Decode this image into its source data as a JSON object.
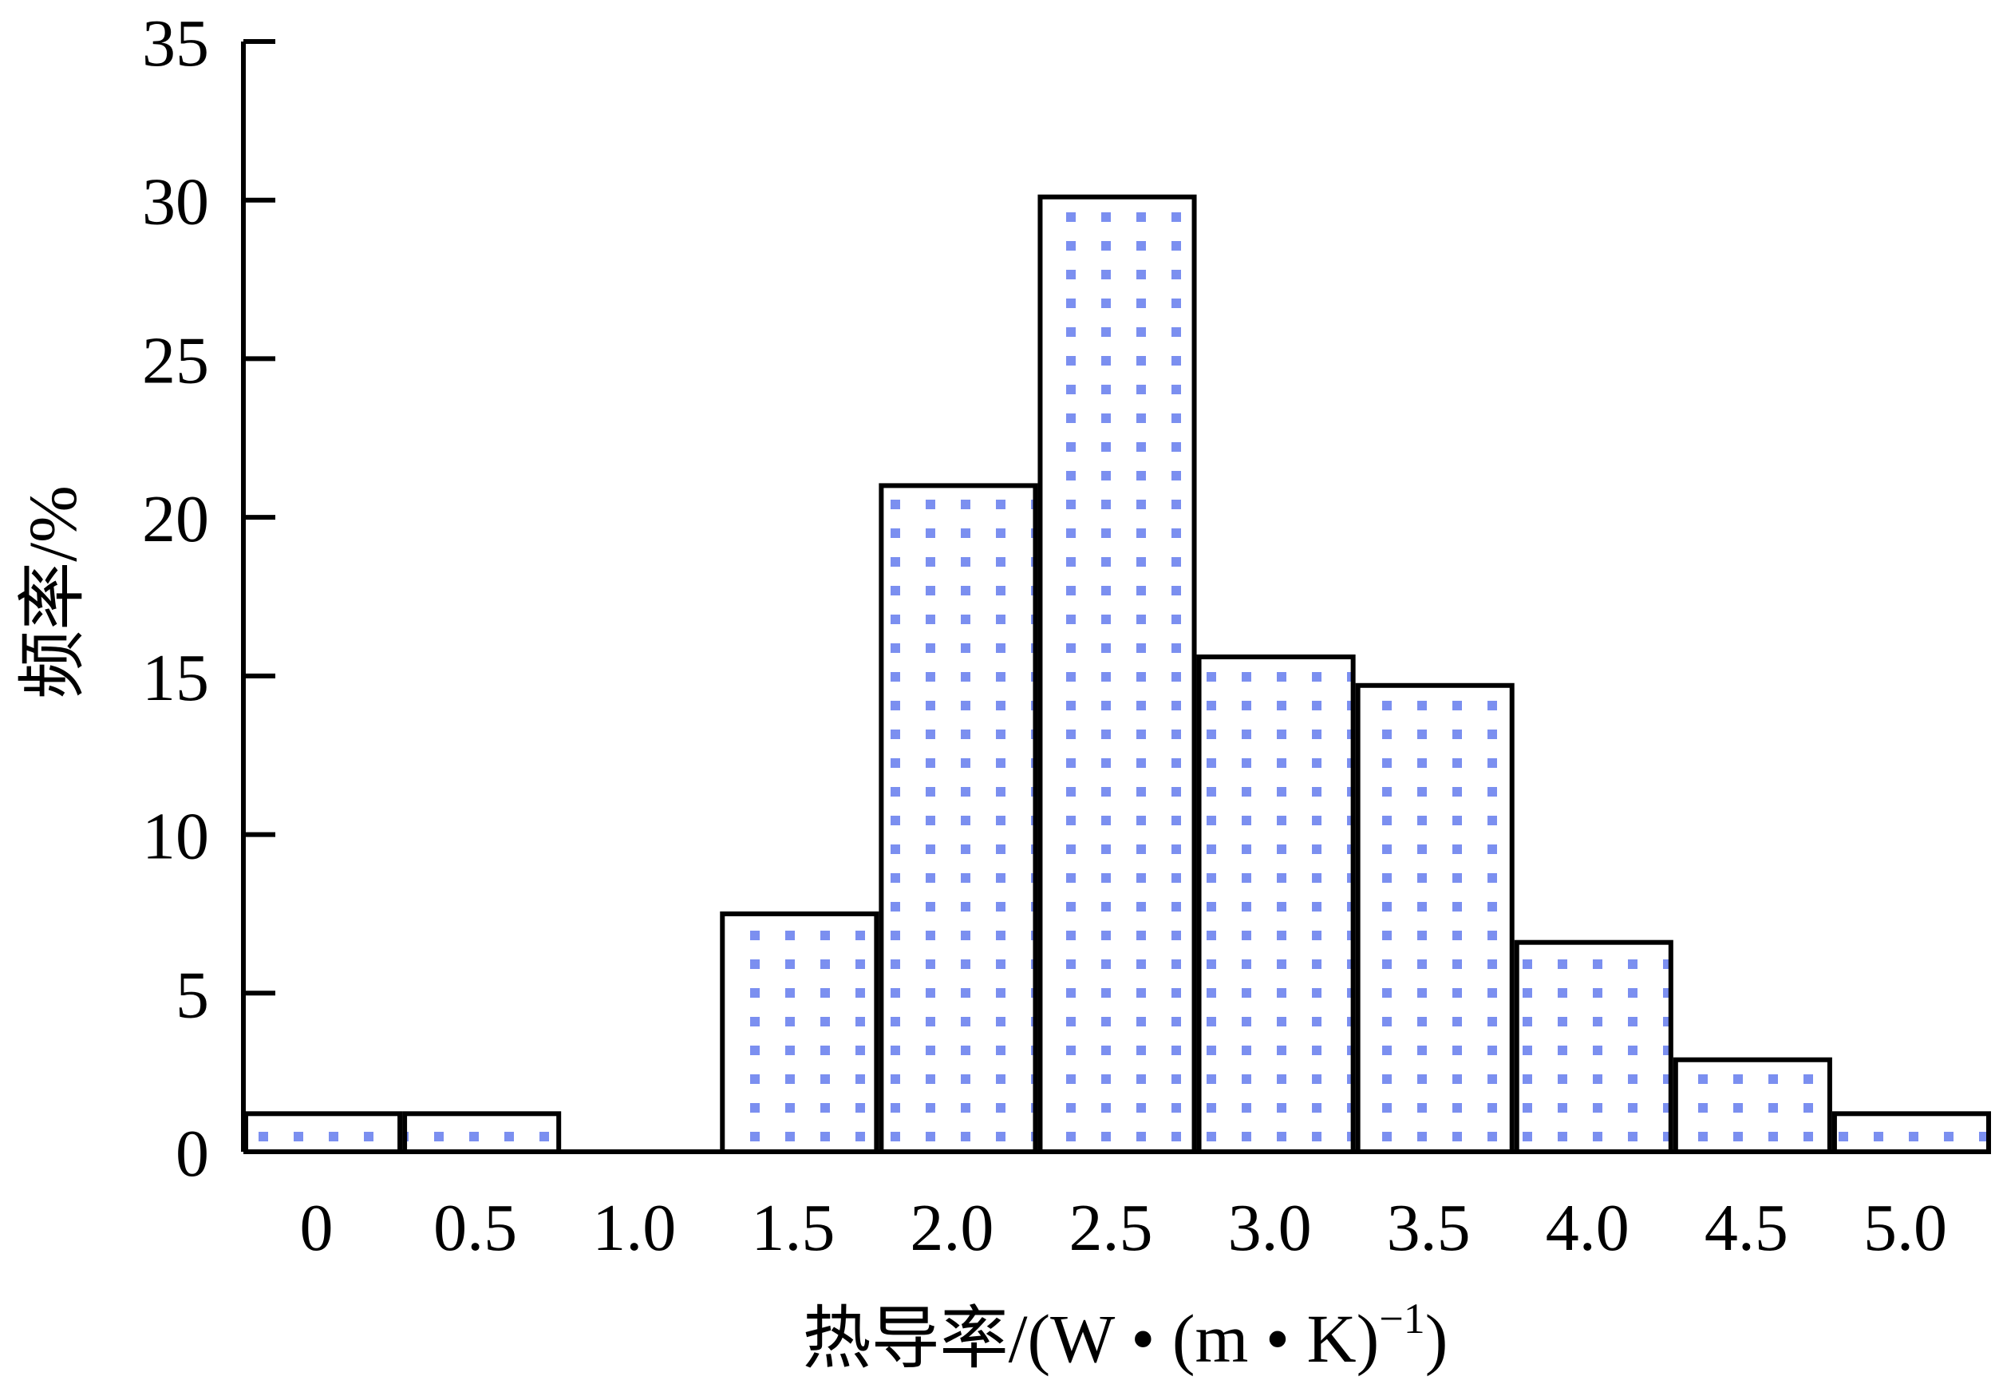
{
  "chart_data": {
    "type": "bar",
    "categories": [
      "0",
      "0.5",
      "1.0",
      "1.5",
      "2.0",
      "2.5",
      "3.0",
      "3.5",
      "4.0",
      "4.5",
      "5.0"
    ],
    "values": [
      1.2,
      1.2,
      0,
      7.5,
      21,
      30.1,
      15.6,
      14.7,
      6.6,
      2.9,
      1.2
    ],
    "xlabel": "热导率/(W • (m • K)",
    "xlabel_superscript": "−1",
    "xlabel_suffix": ")",
    "ylabel": "频率/%",
    "ylim": [
      0,
      35
    ],
    "yticks": [
      "0",
      "5",
      "10",
      "15",
      "20",
      "25",
      "30",
      "35"
    ],
    "grid": false,
    "legend": "none",
    "colors": {
      "bar_fill_dots": "#7b8ff0",
      "bar_outline": "#000000"
    }
  }
}
